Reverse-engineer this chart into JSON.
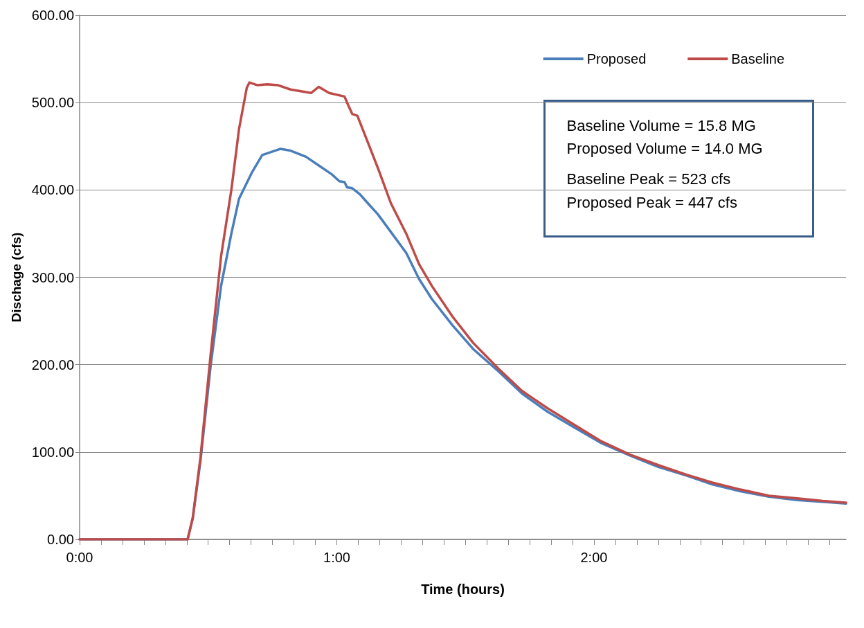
{
  "chart_data": {
    "type": "line",
    "xlabel": "Time (hours)",
    "ylabel": "Dischage (cfs)",
    "xlim": [
      0,
      2.98
    ],
    "xticks": [
      {
        "value": 0,
        "label": "0:00"
      },
      {
        "value": 0.0833,
        "label": null
      },
      {
        "value": 0.1667,
        "label": null
      },
      {
        "value": 0.25,
        "label": null
      },
      {
        "value": 0.3333,
        "label": null
      },
      {
        "value": 0.4167,
        "label": null
      },
      {
        "value": 0.5,
        "label": null
      },
      {
        "value": 0.5833,
        "label": null
      },
      {
        "value": 0.6667,
        "label": null
      },
      {
        "value": 0.75,
        "label": null
      },
      {
        "value": 0.8333,
        "label": null
      },
      {
        "value": 0.9167,
        "label": null
      },
      {
        "value": 1,
        "label": "1:00"
      },
      {
        "value": 1.0833,
        "label": null
      },
      {
        "value": 1.1667,
        "label": null
      },
      {
        "value": 1.25,
        "label": null
      },
      {
        "value": 1.3333,
        "label": null
      },
      {
        "value": 1.4167,
        "label": null
      },
      {
        "value": 1.5,
        "label": null
      },
      {
        "value": 1.5833,
        "label": null
      },
      {
        "value": 1.6667,
        "label": null
      },
      {
        "value": 1.75,
        "label": null
      },
      {
        "value": 1.8333,
        "label": null
      },
      {
        "value": 1.9167,
        "label": null
      },
      {
        "value": 2,
        "label": "2:00"
      },
      {
        "value": 2.0833,
        "label": null
      },
      {
        "value": 2.1667,
        "label": null
      },
      {
        "value": 2.25,
        "label": null
      },
      {
        "value": 2.3333,
        "label": null
      },
      {
        "value": 2.4167,
        "label": null
      },
      {
        "value": 2.5,
        "label": null
      },
      {
        "value": 2.5833,
        "label": null
      },
      {
        "value": 2.6667,
        "label": null
      },
      {
        "value": 2.75,
        "label": null
      },
      {
        "value": 2.8333,
        "label": null
      },
      {
        "value": 2.9167,
        "label": null
      }
    ],
    "ylim": [
      0,
      600
    ],
    "yticks": [
      {
        "value": 0,
        "label": "0.00"
      },
      {
        "value": 100,
        "label": "100.00"
      },
      {
        "value": 200,
        "label": "200.00"
      },
      {
        "value": 300,
        "label": "300.00"
      },
      {
        "value": 400,
        "label": "400.00"
      },
      {
        "value": 500,
        "label": "500.00"
      },
      {
        "value": 600,
        "label": "600.00"
      }
    ],
    "grid": "y",
    "legend": "top right",
    "marker": "none",
    "line_style": "solid",
    "annotations": [
      "Baseline Volume = 15.8 MG",
      "Proposed Volume = 14.0 MG",
      "Baseline Peak = 523 cfs",
      "Proposed Peak = 447 cfs"
    ],
    "series": [
      {
        "name": "Proposed",
        "color": "#4a7ebb",
        "x": [
          0,
          0.42,
          0.44,
          0.47,
          0.51,
          0.55,
          0.59,
          0.62,
          0.67,
          0.71,
          0.78,
          0.82,
          0.88,
          0.93,
          0.98,
          1.01,
          1.03,
          1.04,
          1.06,
          1.09,
          1.12,
          1.16,
          1.21,
          1.27,
          1.32,
          1.37,
          1.45,
          1.53,
          1.63,
          1.72,
          1.82,
          1.93,
          2.03,
          2.14,
          2.25,
          2.36,
          2.46,
          2.57,
          2.68,
          2.79,
          2.89,
          2.98
        ],
        "values": [
          0,
          0,
          24,
          90,
          200,
          290,
          350,
          390,
          420,
          440,
          447,
          445,
          438,
          428,
          418,
          410,
          409,
          403,
          402,
          395,
          385,
          372,
          352,
          328,
          298,
          275,
          245,
          218,
          192,
          167,
          146,
          127,
          110,
          96,
          83,
          73,
          63,
          55,
          49,
          45,
          43,
          41
        ]
      },
      {
        "name": "Baseline",
        "color": "#be4b48",
        "x": [
          0,
          0.42,
          0.44,
          0.47,
          0.51,
          0.55,
          0.59,
          0.62,
          0.65,
          0.66,
          0.69,
          0.73,
          0.77,
          0.82,
          0.9,
          0.93,
          0.97,
          1.03,
          1.04,
          1.06,
          1.08,
          1.12,
          1.16,
          1.21,
          1.27,
          1.32,
          1.37,
          1.45,
          1.53,
          1.63,
          1.72,
          1.82,
          1.93,
          2.03,
          2.14,
          2.25,
          2.36,
          2.46,
          2.57,
          2.68,
          2.79,
          2.89,
          2.98
        ],
        "values": [
          0,
          0,
          25,
          94,
          213,
          324,
          400,
          470,
          517,
          523,
          520,
          521,
          520,
          515,
          511,
          518,
          511,
          507,
          500,
          487,
          485,
          455,
          425,
          385,
          350,
          315,
          290,
          255,
          225,
          195,
          170,
          150,
          130,
          112,
          97,
          85,
          74,
          65,
          57,
          50,
          47,
          44,
          42
        ]
      }
    ]
  }
}
